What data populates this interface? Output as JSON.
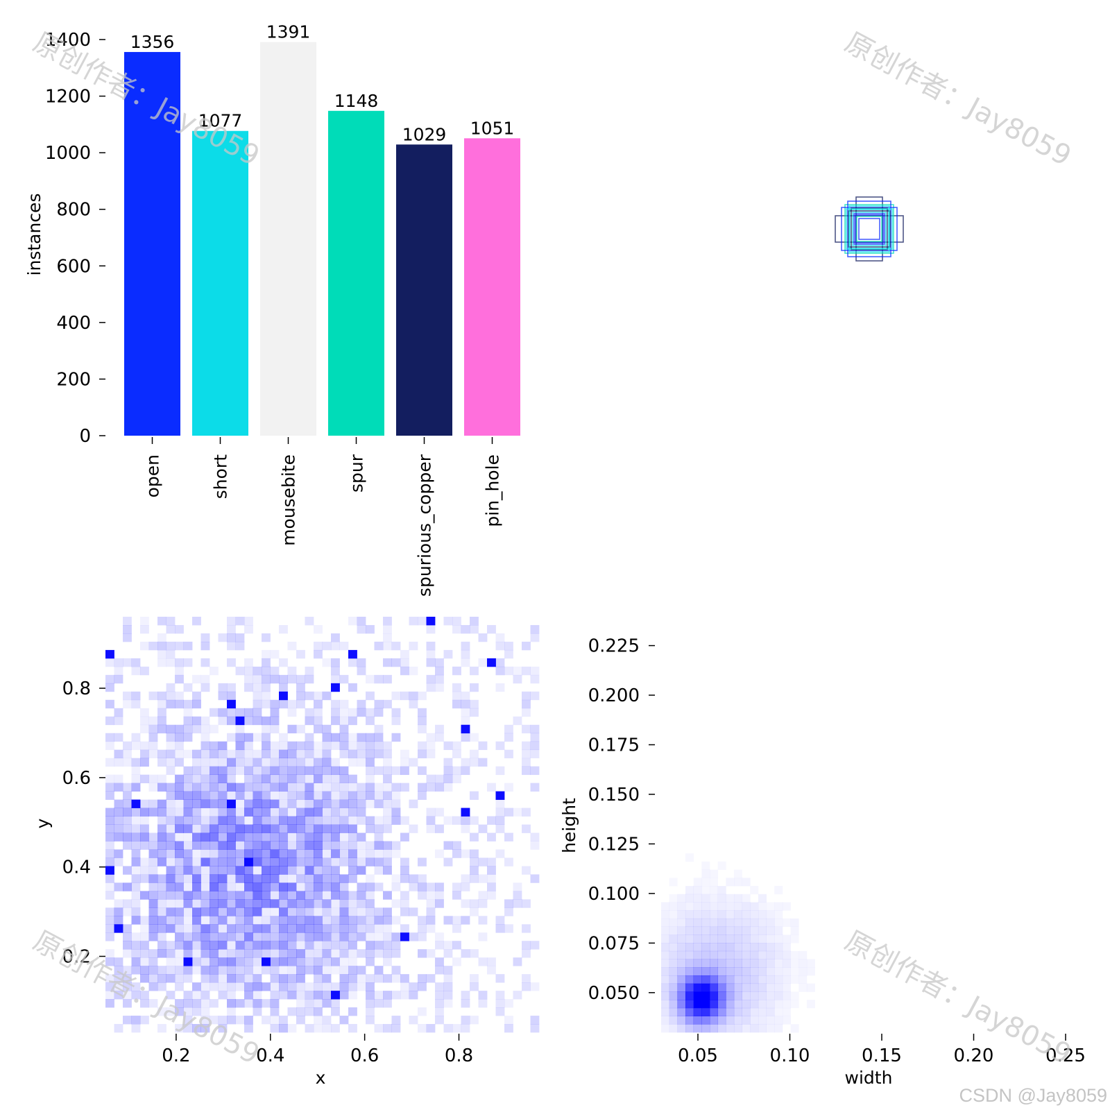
{
  "charts": {
    "labels_bar": {
      "ylabel": "instances"
    },
    "xy_hist": {
      "xlabel": "x",
      "ylabel": "y"
    },
    "wh_hist": {
      "xlabel": "width",
      "ylabel": "height"
    }
  },
  "watermark": {
    "text": "原创作者：Jay8059"
  },
  "credit": "CSDN @Jay8059",
  "chart_data": [
    {
      "type": "bar",
      "categories": [
        "open",
        "short",
        "mousebite",
        "spur",
        "spurious_copper",
        "pin_hole"
      ],
      "values": [
        1356,
        1077,
        1391,
        1148,
        1029,
        1051
      ],
      "colors": [
        "#0a2cff",
        "#0cdce8",
        "#f2f2f2",
        "#00dcb8",
        "#131e5f",
        "#ff6fdc"
      ],
      "value_labels": [
        "1356",
        "1077",
        "1391",
        "1148",
        "1029",
        "1051"
      ],
      "ylabel": "instances",
      "ylim": [
        0,
        1400
      ],
      "yticks": [
        "0",
        "200",
        "400",
        "600",
        "800",
        "1000",
        "1200",
        "1400"
      ],
      "grid": false
    },
    {
      "type": "scatter",
      "description": "overlaid bounding-box outlines centered at (0.5, 0.5)",
      "center": [
        0.5,
        0.5
      ],
      "colors": [
        "#0a2cff",
        "#0cdce8",
        "#131e5f",
        "#00dcb8"
      ]
    },
    {
      "type": "heatmap",
      "xlabel": "x",
      "ylabel": "y",
      "xlim": [
        0.05,
        0.97
      ],
      "ylim": [
        0.03,
        0.96
      ],
      "xticks": [
        "0.2",
        "0.4",
        "0.6",
        "0.8"
      ],
      "yticks": [
        "0.2",
        "0.4",
        "0.6",
        "0.8"
      ],
      "bins": 50,
      "peak": [
        0.35,
        0.4
      ],
      "color": "#0000ff"
    },
    {
      "type": "heatmap",
      "xlabel": "width",
      "ylabel": "height",
      "xlim": [
        0.03,
        0.25
      ],
      "ylim": [
        0.03,
        0.235
      ],
      "xticks": [
        "0.05",
        "0.10",
        "0.15",
        "0.20",
        "0.25"
      ],
      "yticks": [
        "0.050",
        "0.075",
        "0.100",
        "0.125",
        "0.150",
        "0.175",
        "0.200",
        "0.225"
      ],
      "bins": 50,
      "peak": [
        0.052,
        0.047
      ],
      "color": "#0000ff"
    }
  ]
}
